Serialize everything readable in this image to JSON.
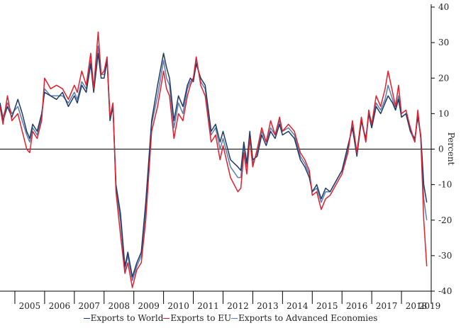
{
  "chart_data": {
    "type": "line",
    "ylabel": "Percent",
    "ylim": [
      -40,
      40
    ],
    "yticks": [
      40,
      30,
      20,
      10,
      0,
      -10,
      -20,
      -30,
      -40
    ],
    "xlim": [
      2004.5,
      2019.0
    ],
    "year_labels": [
      "2005",
      "2006",
      "2007",
      "2008",
      "2009",
      "2010",
      "2011",
      "2012",
      "2013",
      "2014",
      "2015",
      "2016",
      "2017",
      "2018",
      "2019"
    ],
    "legend": [
      "Exports to World",
      "Exports to EU",
      "Exports to Advanced Economies"
    ],
    "series": [
      {
        "name": "Exports to World",
        "color": "#1f3a68",
        "x": [
          2004.5,
          2004.6,
          2004.75,
          2004.9,
          2005.1,
          2005.25,
          2005.4,
          2005.5,
          2005.6,
          2005.75,
          2005.9,
          2006.0,
          2006.2,
          2006.4,
          2006.6,
          2006.8,
          2007.0,
          2007.1,
          2007.25,
          2007.4,
          2007.55,
          2007.65,
          2007.8,
          2007.9,
          2008.0,
          2008.1,
          2008.2,
          2008.3,
          2008.4,
          2008.55,
          2008.7,
          2008.8,
          2008.95,
          2009.1,
          2009.25,
          2009.4,
          2009.6,
          2009.8,
          2010.0,
          2010.1,
          2010.2,
          2010.35,
          2010.5,
          2010.65,
          2010.8,
          2010.9,
          2011.0,
          2011.1,
          2011.25,
          2011.4,
          2011.6,
          2011.75,
          2011.9,
          2012.0,
          2012.25,
          2012.5,
          2012.6,
          2012.7,
          2012.8,
          2012.9,
          2013.0,
          2013.15,
          2013.3,
          2013.45,
          2013.6,
          2013.75,
          2013.9,
          2014.0,
          2014.2,
          2014.4,
          2014.6,
          2014.75,
          2014.9,
          2015.0,
          2015.15,
          2015.3,
          2015.45,
          2015.6,
          2015.8,
          2016.0,
          2016.2,
          2016.35,
          2016.5,
          2016.65,
          2016.8,
          2016.9,
          2017.0,
          2017.15,
          2017.3,
          2017.45,
          2017.55,
          2017.7,
          2017.8,
          2017.9,
          2018.0,
          2018.15,
          2018.3,
          2018.45,
          2018.55,
          2018.65,
          2018.75,
          2018.85
        ],
        "values": [
          13,
          8,
          12,
          9,
          14,
          10,
          5,
          3,
          7,
          5,
          10,
          16,
          15,
          14,
          16,
          12,
          15,
          13,
          18,
          16,
          24,
          16,
          27,
          20,
          20,
          25,
          8,
          12,
          -10,
          -18,
          -33,
          -29,
          -36,
          -32,
          -29,
          -15,
          8,
          18,
          27,
          23,
          20,
          8,
          15,
          12,
          18,
          20,
          19,
          24,
          20,
          18,
          5,
          7,
          2,
          5,
          -3,
          -5,
          -6,
          2,
          -4,
          5,
          -3,
          -2,
          4,
          1,
          5,
          3,
          7,
          4,
          5,
          3,
          -3,
          -5,
          -8,
          -12,
          -10,
          -14,
          -11,
          -12,
          -9,
          -6,
          1,
          6,
          -2,
          8,
          3,
          10,
          6,
          12,
          10,
          13,
          15,
          13,
          11,
          14,
          9,
          10,
          5,
          3,
          9,
          4,
          -10,
          -15
        ]
      },
      {
        "name": "Exports to EU",
        "color": "#e0202e",
        "x": [
          2004.5,
          2004.6,
          2004.75,
          2004.9,
          2005.1,
          2005.25,
          2005.4,
          2005.5,
          2005.6,
          2005.75,
          2005.9,
          2006.0,
          2006.2,
          2006.4,
          2006.6,
          2006.8,
          2007.0,
          2007.1,
          2007.25,
          2007.4,
          2007.55,
          2007.65,
          2007.8,
          2007.9,
          2008.0,
          2008.1,
          2008.2,
          2008.3,
          2008.4,
          2008.55,
          2008.7,
          2008.8,
          2008.95,
          2009.1,
          2009.25,
          2009.4,
          2009.6,
          2009.8,
          2010.0,
          2010.1,
          2010.2,
          2010.35,
          2010.5,
          2010.65,
          2010.8,
          2010.9,
          2011.0,
          2011.1,
          2011.25,
          2011.4,
          2011.6,
          2011.75,
          2011.9,
          2012.0,
          2012.25,
          2012.5,
          2012.6,
          2012.7,
          2012.8,
          2012.9,
          2013.0,
          2013.15,
          2013.3,
          2013.45,
          2013.6,
          2013.75,
          2013.9,
          2014.0,
          2014.2,
          2014.4,
          2014.6,
          2014.75,
          2014.9,
          2015.0,
          2015.15,
          2015.3,
          2015.45,
          2015.6,
          2015.8,
          2016.0,
          2016.2,
          2016.35,
          2016.5,
          2016.65,
          2016.8,
          2016.9,
          2017.0,
          2017.15,
          2017.3,
          2017.45,
          2017.55,
          2017.7,
          2017.8,
          2017.9,
          2018.0,
          2018.15,
          2018.3,
          2018.45,
          2018.55,
          2018.65,
          2018.75,
          2018.85
        ],
        "values": [
          12,
          7,
          15,
          8,
          10,
          5,
          0,
          -1,
          5,
          3,
          8,
          20,
          17,
          18,
          17,
          14,
          18,
          16,
          22,
          18,
          27,
          17,
          33,
          21,
          22,
          26,
          9,
          13,
          -12,
          -24,
          -35,
          -32,
          -39,
          -34,
          -32,
          -20,
          5,
          12,
          22,
          17,
          15,
          3,
          10,
          8,
          15,
          18,
          20,
          26,
          18,
          15,
          2,
          4,
          -3,
          1,
          -8,
          -12,
          -11,
          -1,
          -7,
          3,
          -5,
          0,
          6,
          2,
          8,
          4,
          9,
          5,
          7,
          5,
          -1,
          -3,
          -6,
          -13,
          -12,
          -17,
          -14,
          -13,
          -10,
          -7,
          -1,
          8,
          -1,
          9,
          2,
          11,
          7,
          15,
          12,
          17,
          22,
          16,
          12,
          18,
          10,
          11,
          6,
          2,
          11,
          3,
          -20,
          -33
        ]
      },
      {
        "name": "Exports to Advanced Economies",
        "color": "#5b7fa8",
        "x": [
          2004.5,
          2004.6,
          2004.75,
          2004.9,
          2005.1,
          2005.25,
          2005.4,
          2005.5,
          2005.6,
          2005.75,
          2005.9,
          2006.0,
          2006.2,
          2006.4,
          2006.6,
          2006.8,
          2007.0,
          2007.1,
          2007.25,
          2007.4,
          2007.55,
          2007.65,
          2007.8,
          2007.9,
          2008.0,
          2008.1,
          2008.2,
          2008.3,
          2008.4,
          2008.55,
          2008.7,
          2008.8,
          2008.95,
          2009.1,
          2009.25,
          2009.4,
          2009.6,
          2009.8,
          2010.0,
          2010.1,
          2010.2,
          2010.35,
          2010.5,
          2010.65,
          2010.8,
          2010.9,
          2011.0,
          2011.1,
          2011.25,
          2011.4,
          2011.6,
          2011.75,
          2011.9,
          2012.0,
          2012.25,
          2012.5,
          2012.6,
          2012.7,
          2012.8,
          2012.9,
          2013.0,
          2013.15,
          2013.3,
          2013.45,
          2013.6,
          2013.75,
          2013.9,
          2014.0,
          2014.2,
          2014.4,
          2014.6,
          2014.75,
          2014.9,
          2015.0,
          2015.15,
          2015.3,
          2015.45,
          2015.6,
          2015.8,
          2016.0,
          2016.2,
          2016.35,
          2016.5,
          2016.65,
          2016.8,
          2016.9,
          2017.0,
          2017.15,
          2017.3,
          2017.45,
          2017.55,
          2017.7,
          2017.8,
          2017.9,
          2018.0,
          2018.15,
          2018.3,
          2018.45,
          2018.55,
          2018.65,
          2018.75,
          2018.85
        ],
        "values": [
          13,
          9,
          13,
          10,
          12,
          8,
          4,
          2,
          6,
          4,
          9,
          17,
          15,
          15,
          15,
          13,
          16,
          14,
          19,
          17,
          25,
          17,
          29,
          21,
          21,
          25,
          9,
          12,
          -11,
          -20,
          -34,
          -30,
          -37,
          -33,
          -30,
          -17,
          7,
          15,
          25,
          20,
          18,
          6,
          13,
          10,
          17,
          19,
          20,
          25,
          19,
          17,
          4,
          6,
          0,
          3,
          -5,
          -8,
          -8,
          1,
          -5,
          4,
          -4,
          -1,
          5,
          2,
          6,
          4,
          8,
          5,
          6,
          4,
          -2,
          -4,
          -7,
          -12,
          -11,
          -15,
          -12,
          -12,
          -9,
          -6,
          0,
          7,
          -1,
          8,
          2,
          10,
          6,
          13,
          11,
          14,
          18,
          14,
          11,
          15,
          9,
          10,
          5,
          2,
          10,
          3,
          -14,
          -20
        ]
      }
    ]
  }
}
